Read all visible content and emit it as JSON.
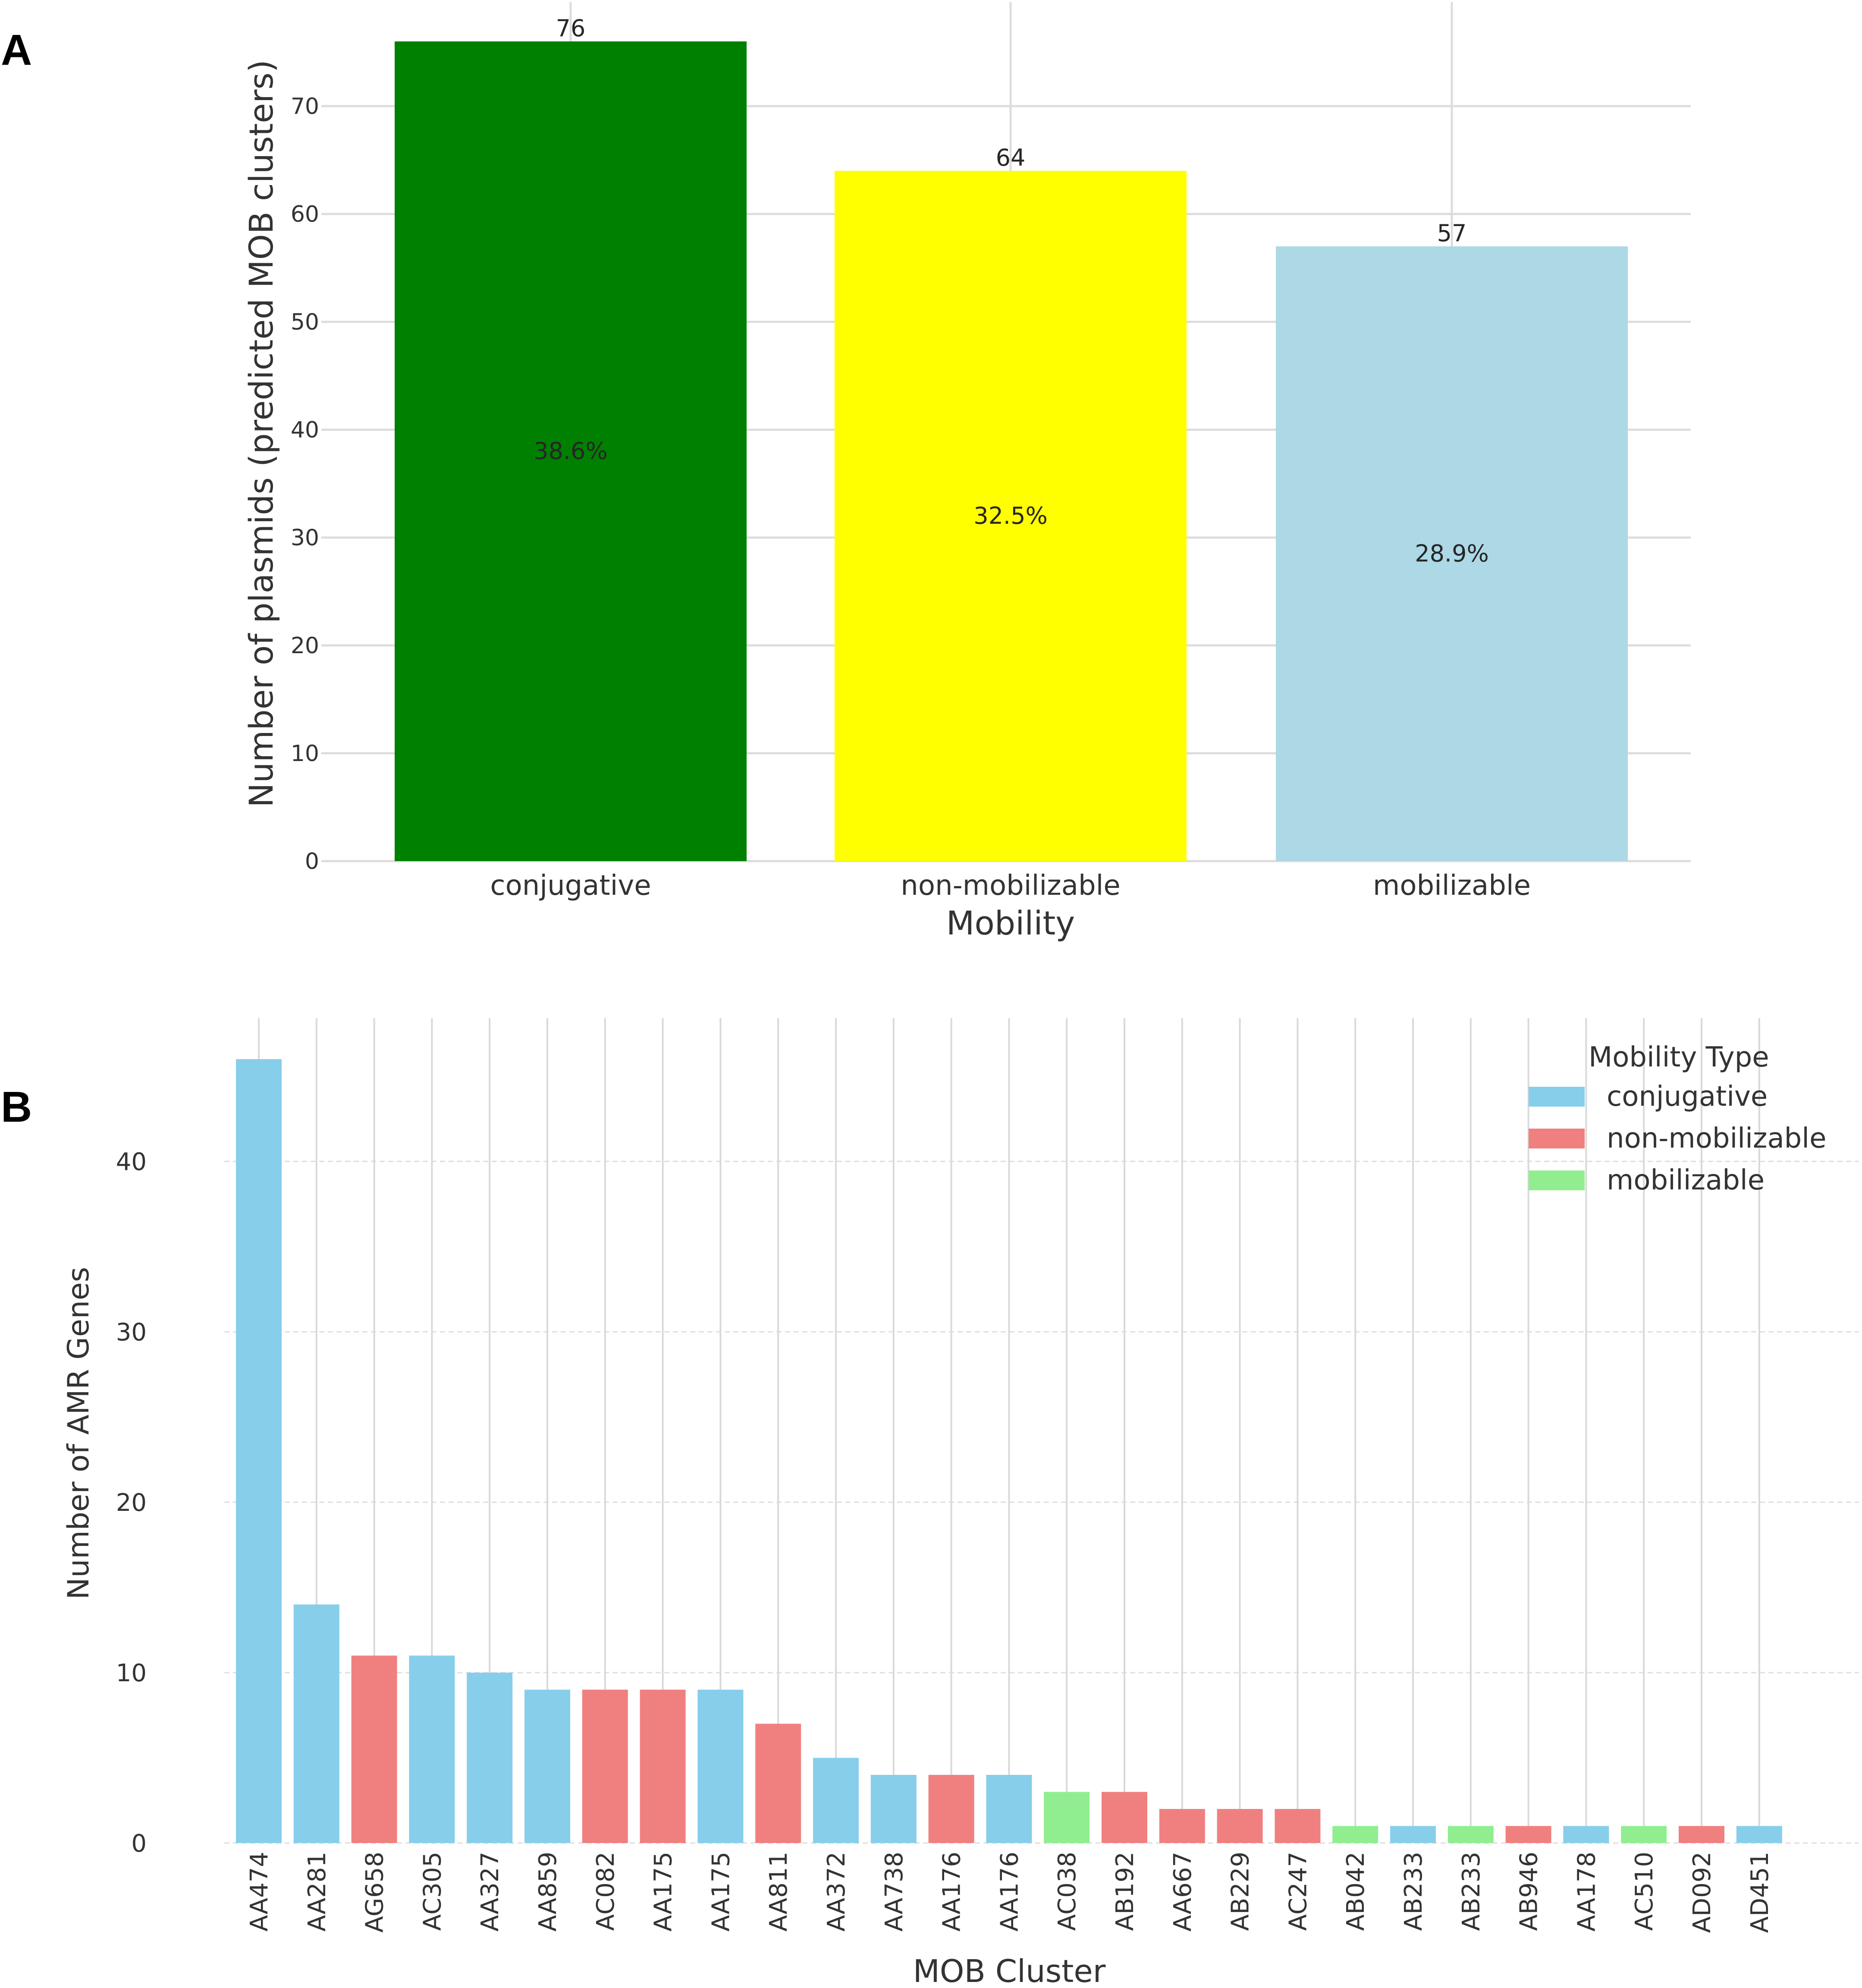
{
  "chart_data": [
    {
      "panel": "A",
      "type": "bar",
      "categories": [
        "conjugative",
        "non-mobilizable",
        "mobilizable"
      ],
      "values": [
        76,
        64,
        57
      ],
      "percent_labels": [
        "38.6%",
        "32.5%",
        "28.9%"
      ],
      "colors": [
        "#008000",
        "#ffff00",
        "#add8e6"
      ],
      "title": "",
      "xlabel": "Mobility",
      "ylabel": "Number of plasmids (predicted MOB clusters)",
      "ylim": [
        0,
        78
      ],
      "yticks": [
        0,
        10,
        20,
        30,
        40,
        50,
        60,
        70
      ],
      "grid": true
    },
    {
      "panel": "B",
      "type": "bar",
      "categories": [
        "AA474",
        "AA281",
        "AG658",
        "AC305",
        "AA327",
        "AA859",
        "AC082",
        "AA175",
        "AA175",
        "AA811",
        "AA372",
        "AA738",
        "AA176",
        "AA176",
        "AC038",
        "AB192",
        "AA667",
        "AB229",
        "AC247",
        "AB042",
        "AB233",
        "AB233",
        "AB946",
        "AA178",
        "AC510",
        "AD092",
        "AD451"
      ],
      "values": [
        46,
        14,
        11,
        11,
        10,
        9,
        9,
        9,
        9,
        7,
        5,
        4,
        4,
        4,
        3,
        3,
        2,
        2,
        2,
        1,
        1,
        1,
        1,
        1,
        1,
        1,
        1
      ],
      "mobility": [
        "conjugative",
        "conjugative",
        "non-mobilizable",
        "conjugative",
        "conjugative",
        "conjugative",
        "non-mobilizable",
        "non-mobilizable",
        "conjugative",
        "non-mobilizable",
        "conjugative",
        "conjugative",
        "non-mobilizable",
        "conjugative",
        "mobilizable",
        "non-mobilizable",
        "non-mobilizable",
        "non-mobilizable",
        "non-mobilizable",
        "mobilizable",
        "conjugative",
        "mobilizable",
        "non-mobilizable",
        "conjugative",
        "mobilizable",
        "non-mobilizable",
        "conjugative"
      ],
      "title": "",
      "xlabel": "MOB Cluster",
      "ylabel": "Number of AMR Genes",
      "ylim": [
        0,
        48
      ],
      "yticks": [
        0,
        10,
        20,
        30,
        40
      ],
      "grid": true,
      "legend": {
        "title": "Mobility Type",
        "placement": "top-right",
        "entries": [
          {
            "label": "conjugative",
            "color": "#87ceeb"
          },
          {
            "label": "non-mobilizable",
            "color": "#f08080"
          },
          {
            "label": "mobilizable",
            "color": "#90ee90"
          }
        ]
      }
    }
  ],
  "panel_labels": [
    "A",
    "B"
  ]
}
